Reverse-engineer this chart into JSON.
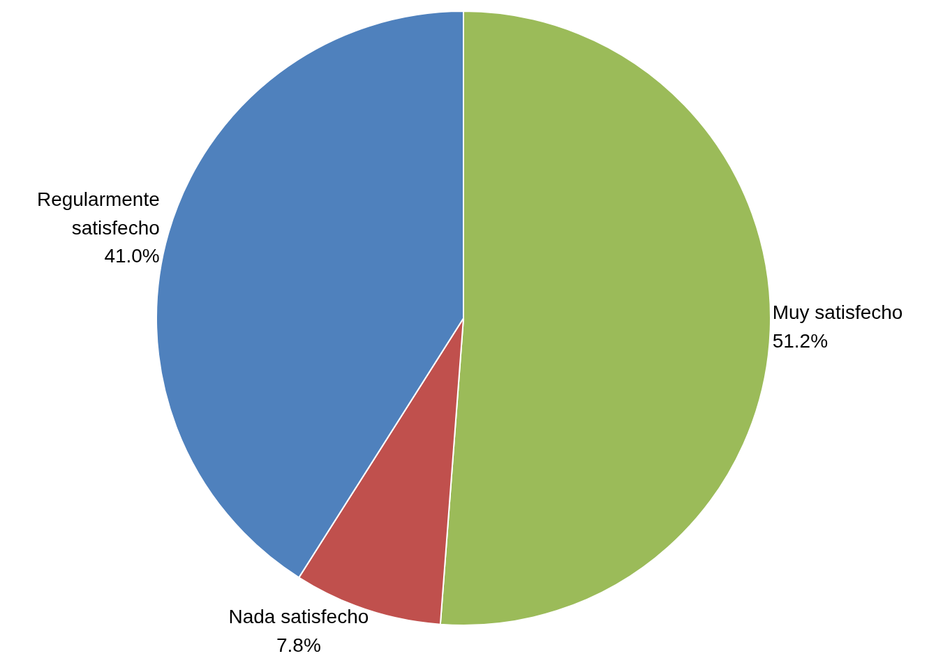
{
  "chart_data": {
    "type": "pie",
    "categories": [
      "Muy satisfecho",
      "Nada satisfecho",
      "Regularmente satisfecho"
    ],
    "values": [
      51.2,
      7.8,
      41.0
    ],
    "value_labels": [
      "51.2%",
      "7.8%",
      "41.0%"
    ],
    "colors": [
      "#9bbb59",
      "#c0504d",
      "#4f81bd"
    ],
    "legend": false
  }
}
